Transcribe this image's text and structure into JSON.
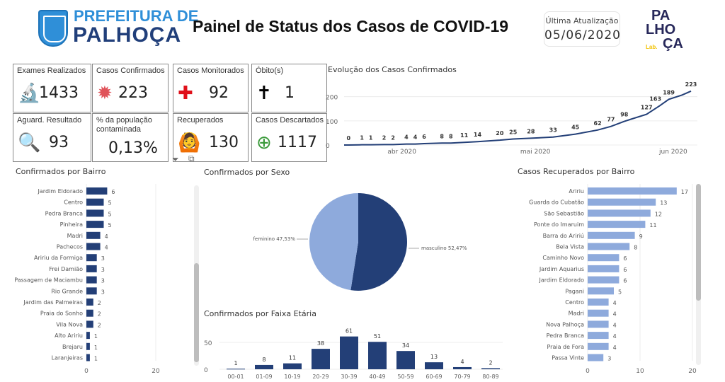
{
  "header": {
    "logo_line1": "PREFEITURA DE",
    "logo_line2": "PALHOÇA",
    "title": "Painel de Status dos Casos de COVID-19",
    "update_label": "Última Atualização",
    "update_value": "05/06/2020",
    "lab_logo": {
      "line1": "PA",
      "line2": "LHO",
      "line3": "ÇA",
      "sub": "Lab."
    }
  },
  "kpis": [
    {
      "label": "Exames Realizados",
      "value": "1433",
      "icon": "microscope-icon"
    },
    {
      "label": "Casos Confirmados",
      "value": "223",
      "icon": "virus-icon"
    },
    {
      "label": "Casos Monitorados",
      "value": "92",
      "icon": "red-cross-icon"
    },
    {
      "label": "Óbito(s)",
      "value": "1",
      "icon": "cross-icon"
    },
    {
      "label": "Aguard. Resultado",
      "value": "93",
      "icon": "magnifier-icon"
    },
    {
      "label": "% da população contaminada",
      "value": "0,13%",
      "icon": ""
    },
    {
      "label": "Recuperados",
      "value": "130",
      "icon": "person-cheering-icon"
    },
    {
      "label": "Casos Descartados",
      "value": "1117",
      "icon": "plus-circle-icon"
    }
  ],
  "colors": {
    "dark": "#233f77",
    "light": "#8eaadc",
    "grid": "#ececec"
  },
  "chart_data": [
    {
      "type": "line",
      "title": "Evolução dos Casos Confirmados",
      "ylim": [
        0,
        240
      ],
      "yticks": [
        "0",
        "100",
        "200"
      ],
      "xticks": [
        {
          "label": "abr 2020",
          "date": "2020-04-01"
        },
        {
          "label": "mai 2020",
          "date": "2020-05-01"
        },
        {
          "label": "jun 2020",
          "date": "2020-06-01"
        }
      ],
      "start": "2020-03-19",
      "end": "2020-06-05",
      "points": [
        {
          "date": "2020-03-19",
          "value": 0,
          "label": ""
        },
        {
          "date": "2020-03-20",
          "value": 0,
          "label": "0"
        },
        {
          "date": "2020-03-23",
          "value": 1,
          "label": "1"
        },
        {
          "date": "2020-03-25",
          "value": 1,
          "label": "1"
        },
        {
          "date": "2020-03-28",
          "value": 2,
          "label": "2"
        },
        {
          "date": "2020-03-30",
          "value": 2,
          "label": "2"
        },
        {
          "date": "2020-04-02",
          "value": 4,
          "label": "4"
        },
        {
          "date": "2020-04-04",
          "value": 4,
          "label": "4"
        },
        {
          "date": "2020-04-06",
          "value": 6,
          "label": "6"
        },
        {
          "date": "2020-04-10",
          "value": 8,
          "label": "8"
        },
        {
          "date": "2020-04-12",
          "value": 8,
          "label": "8"
        },
        {
          "date": "2020-04-15",
          "value": 11,
          "label": "11"
        },
        {
          "date": "2020-04-18",
          "value": 14,
          "label": "14"
        },
        {
          "date": "2020-04-23",
          "value": 20,
          "label": "20"
        },
        {
          "date": "2020-04-26",
          "value": 25,
          "label": "25"
        },
        {
          "date": "2020-04-30",
          "value": 28,
          "label": "28"
        },
        {
          "date": "2020-05-05",
          "value": 33,
          "label": "33"
        },
        {
          "date": "2020-05-10",
          "value": 45,
          "label": "45"
        },
        {
          "date": "2020-05-15",
          "value": 62,
          "label": "62"
        },
        {
          "date": "2020-05-18",
          "value": 77,
          "label": "77"
        },
        {
          "date": "2020-05-21",
          "value": 98,
          "label": "98"
        },
        {
          "date": "2020-05-26",
          "value": 127,
          "label": "127"
        },
        {
          "date": "2020-05-29",
          "value": 163,
          "label": "163"
        },
        {
          "date": "2020-05-31",
          "value": 189,
          "label": "189"
        },
        {
          "date": "2020-06-03",
          "value": 207,
          "label": ""
        },
        {
          "date": "2020-06-05",
          "value": 223,
          "label": "223"
        }
      ]
    },
    {
      "type": "bar",
      "orientation": "horizontal",
      "title": "Confirmados por Bairro",
      "xlim": [
        0,
        20
      ],
      "xticks": [
        "0",
        "20"
      ],
      "categories": [
        "Jardim Eldorado",
        "Centro",
        "Pedra Branca",
        "Pinheira",
        "Madri",
        "Pachecos",
        "Aririu da Formiga",
        "Frei Damião",
        "Passagem de Maciambu",
        "Rio Grande",
        "Jardim das Palmeiras",
        "Praia do Sonho",
        "Vila Nova",
        "Alto Aririu",
        "Brejaru",
        "Laranjeiras"
      ],
      "values": [
        6,
        5,
        5,
        5,
        4,
        4,
        3,
        3,
        3,
        3,
        2,
        2,
        2,
        1,
        1,
        1
      ]
    },
    {
      "type": "pie",
      "title": "Confirmados por Sexo",
      "slices": [
        {
          "name": "masculino",
          "value": 52.47,
          "label": "masculino 52,47%"
        },
        {
          "name": "feminino",
          "value": 47.53,
          "label": "feminino 47,53%"
        }
      ]
    },
    {
      "type": "bar",
      "title": "Confirmados por Faixa Etária",
      "ylim": [
        0,
        70
      ],
      "yticks": [
        "0",
        "50"
      ],
      "categories": [
        "00-01",
        "01-09",
        "10-19",
        "20-29",
        "30-39",
        "40-49",
        "50-59",
        "60-69",
        "70-79",
        "80-89"
      ],
      "values": [
        1,
        8,
        11,
        38,
        61,
        51,
        34,
        13,
        4,
        2
      ]
    },
    {
      "type": "bar",
      "orientation": "horizontal",
      "title": "Casos Recuperados por Bairro",
      "xlim": [
        0,
        20
      ],
      "xticks": [
        "0",
        "10",
        "20"
      ],
      "categories": [
        "Aririu",
        "Guarda do Cubatão",
        "São Sebastião",
        "Ponte do Imaruim",
        "Barra do Aririú",
        "Bela Vista",
        "Caminho Novo",
        "Jardim Aquarius",
        "Jardim Eldorado",
        "Pagani",
        "Centro",
        "Madri",
        "Nova Palhoça",
        "Pedra Branca",
        "Praia de Fora",
        "Passa Vinte"
      ],
      "values": [
        17,
        13,
        12,
        11,
        9,
        8,
        6,
        6,
        6,
        5,
        4,
        4,
        4,
        4,
        4,
        3
      ]
    }
  ]
}
